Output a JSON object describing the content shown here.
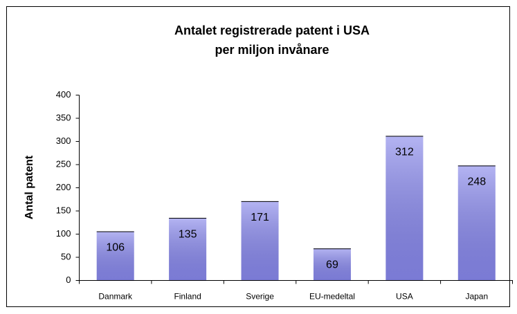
{
  "chart_data": {
    "type": "bar",
    "title": [
      "Antalet registrerade patent i USA",
      "per miljon invånare"
    ],
    "y_label": "Antal patent",
    "categories": [
      "Danmark",
      "Finland",
      "Sverige",
      "EU-medeltal",
      "USA",
      "Japan"
    ],
    "values": [
      106,
      135,
      171,
      69,
      312,
      248
    ],
    "color": "#8c8cec",
    "ylim": [
      0,
      400
    ],
    "yticks": [
      0,
      50,
      100,
      150,
      200,
      250,
      300,
      350,
      400
    ],
    "grid": false
  }
}
